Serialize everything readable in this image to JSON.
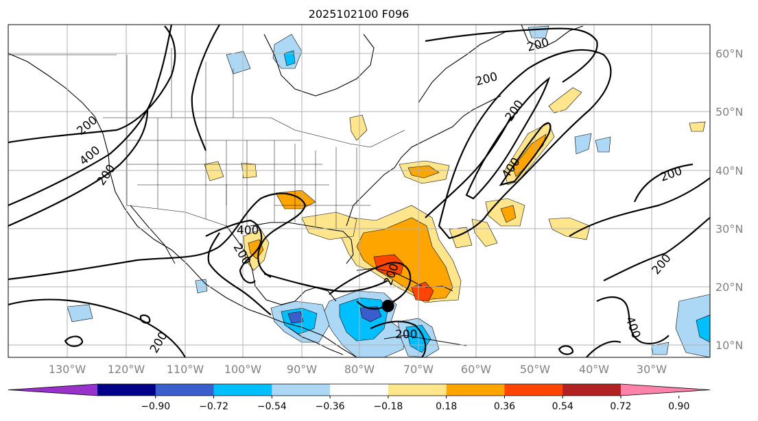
{
  "title": "2025102100 F096",
  "map": {
    "lon_ticks": [
      "130°W",
      "120°W",
      "110°W",
      "100°W",
      "90°W",
      "80°W",
      "70°W",
      "60°W",
      "50°W",
      "40°W",
      "30°W"
    ],
    "lat_ticks": [
      "60°N",
      "50°N",
      "40°N",
      "30°N",
      "20°N",
      "10°N"
    ],
    "contour_labels": [
      "200",
      "400",
      "200",
      "200",
      "400",
      "200",
      "200",
      "200",
      "400",
      "200",
      "200",
      "200",
      "200",
      "200",
      "400",
      "200"
    ],
    "storm_marker": {
      "lon": -75.2,
      "lat": 16.7
    }
  },
  "colorbar": {
    "ticks": [
      "−0.90",
      "−0.72",
      "−0.54",
      "−0.36",
      "−0.18",
      "0.18",
      "0.36",
      "0.54",
      "0.72",
      "0.90"
    ],
    "colors": [
      "#9932cc",
      "#00008b",
      "#3a5fcd",
      "#00bfff",
      "#add8f5",
      "#ffffff",
      "#ffe68c",
      "#ffa500",
      "#ff4500",
      "#b22222",
      "#ff82ab"
    ]
  },
  "colors": {
    "grid": "#b0b0b0",
    "contour": "#000000",
    "tick_text": "#808080"
  }
}
